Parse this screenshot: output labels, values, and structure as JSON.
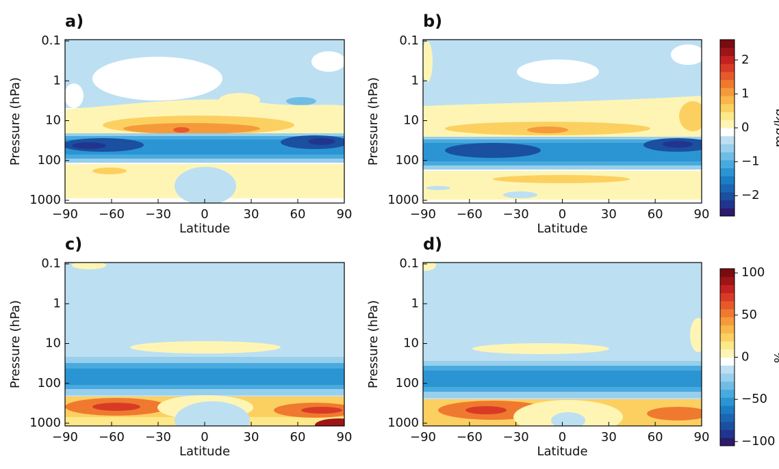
{
  "chart_data": [
    {
      "type": "contour",
      "panel_label": "a)",
      "xlabel": "Latitude",
      "ylabel": "Pressure (hPa)",
      "xlim": [
        -90,
        90
      ],
      "xticks": [
        {
          "value": -90,
          "label": "−90"
        },
        {
          "value": -60,
          "label": "−60"
        },
        {
          "value": -30,
          "label": "−30"
        },
        0,
        30,
        60,
        90
      ],
      "ylim": [
        1000,
        0.1
      ],
      "yticks": [
        0.1,
        1,
        10,
        100,
        1000
      ],
      "log_y": true
    },
    {
      "type": "contour",
      "panel_label": "b)",
      "xlabel": "Latitude",
      "ylabel": "Pressure (hPa)",
      "xlim": [
        -90,
        90
      ],
      "xticks": [
        {
          "value": -90,
          "label": "−90"
        },
        {
          "value": -60,
          "label": "−60"
        },
        {
          "value": -30,
          "label": "−30"
        },
        0,
        30,
        60,
        90
      ],
      "ylim": [
        1000,
        0.1
      ],
      "yticks": [
        0.1,
        1,
        10,
        100,
        1000
      ],
      "log_y": true,
      "colorbar": {
        "label": "mg/kg",
        "lim": [
          -2.6,
          2.6
        ],
        "ticks": [
          {
            "value": -2,
            "label": "−2"
          },
          {
            "value": -1,
            "label": "−1"
          },
          0,
          1,
          2
        ],
        "colors": [
          "#2d1a6b",
          "#21358f",
          "#1b4fa0",
          "#1a66b4",
          "#1b7dc4",
          "#2b95d3",
          "#48aade",
          "#6fbde5",
          "#97cfec",
          "#bcdff2",
          "#ffffff",
          "#fef5b5",
          "#fde88a",
          "#fcd060",
          "#f9b64a",
          "#f59a3a",
          "#ef7a2f",
          "#e65a2a",
          "#d93a26",
          "#c2221f",
          "#9e1418",
          "#7a0c10"
        ]
      }
    },
    {
      "type": "contour",
      "panel_label": "c)",
      "xlabel": "Latitude",
      "ylabel": "Pressure (hPa)",
      "xlim": [
        -90,
        90
      ],
      "xticks": [
        {
          "value": -90,
          "label": "−90"
        },
        {
          "value": -60,
          "label": "−60"
        },
        {
          "value": -30,
          "label": "−30"
        },
        0,
        30,
        60,
        90
      ],
      "ylim": [
        1000,
        0.1
      ],
      "yticks": [
        0.1,
        1,
        10,
        100,
        1000
      ],
      "log_y": true
    },
    {
      "type": "contour",
      "panel_label": "d)",
      "xlabel": "Latitude",
      "ylabel": "Pressure (hPa)",
      "xlim": [
        -90,
        90
      ],
      "xticks": [
        {
          "value": -90,
          "label": "−90"
        },
        {
          "value": -60,
          "label": "−60"
        },
        {
          "value": -30,
          "label": "−30"
        },
        0,
        30,
        60,
        90
      ],
      "ylim": [
        1000,
        0.1
      ],
      "yticks": [
        0.1,
        1,
        10,
        100,
        1000
      ],
      "log_y": true,
      "colorbar": {
        "label": "%",
        "lim": [
          -105,
          105
        ],
        "ticks": [
          {
            "value": -100,
            "label": "−100"
          },
          {
            "value": -50,
            "label": "−50"
          },
          0,
          50,
          100
        ],
        "colors": [
          "#2d1a6b",
          "#21358f",
          "#1b4fa0",
          "#1a66b4",
          "#1b7dc4",
          "#2b95d3",
          "#48aade",
          "#6fbde5",
          "#97cfec",
          "#bcdff2",
          "#ffffff",
          "#fef5b5",
          "#fde88a",
          "#fcd060",
          "#f9b64a",
          "#f59a3a",
          "#ef7a2f",
          "#e65a2a",
          "#d93a26",
          "#c2221f",
          "#9e1418",
          "#7a0c10"
        ]
      }
    }
  ]
}
